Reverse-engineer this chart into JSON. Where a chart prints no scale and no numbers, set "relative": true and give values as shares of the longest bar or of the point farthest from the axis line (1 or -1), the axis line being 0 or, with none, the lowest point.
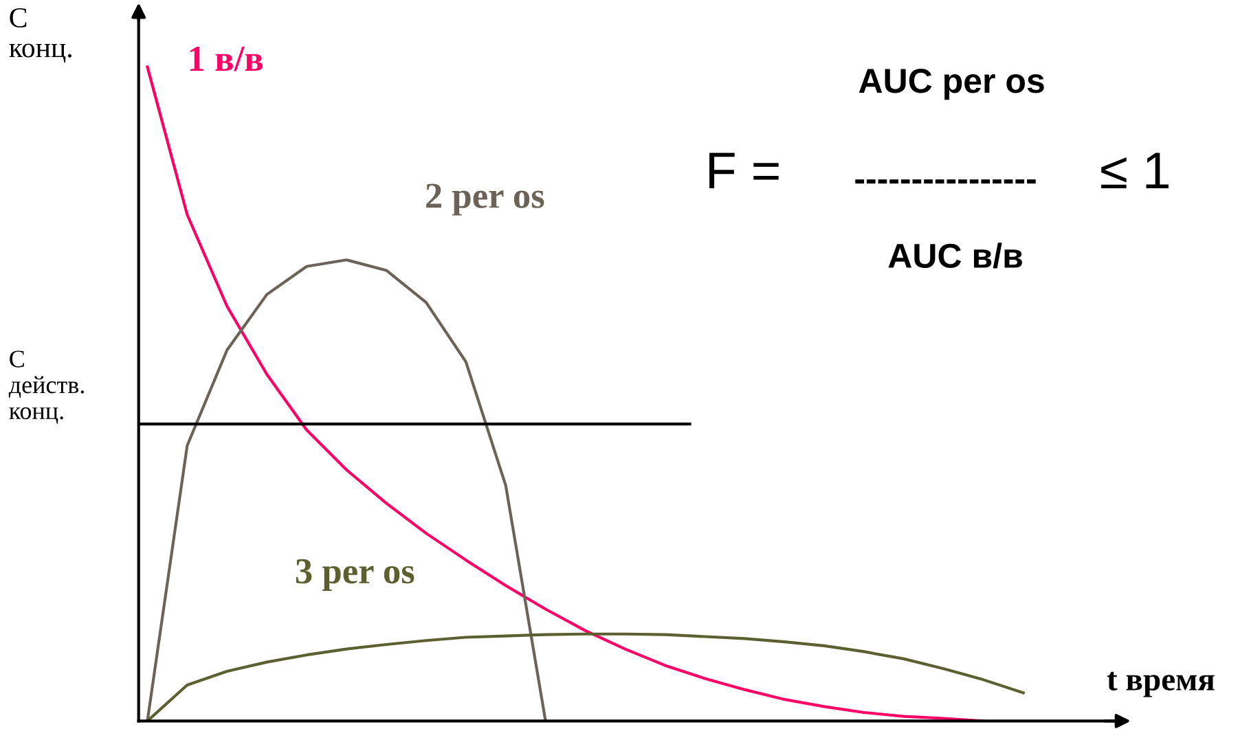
{
  "chart_data": {
    "type": "line",
    "relative": true,
    "ylabel": "С\nконц.",
    "xlabel": "t время",
    "categories": [
      null,
      null,
      null,
      null,
      null,
      null,
      null,
      null,
      null,
      null,
      null,
      null,
      null,
      null,
      null,
      null,
      null,
      null,
      null,
      null,
      null,
      null,
      null,
      null
    ],
    "series": [
      {
        "name": "1 в/в",
        "color": "#ff0066",
        "values": [
          1.0,
          0.774,
          0.634,
          0.53,
          0.445,
          0.384,
          0.333,
          0.287,
          0.246,
          0.207,
          0.171,
          0.138,
          0.11,
          0.085,
          0.065,
          0.048,
          0.033,
          0.022,
          0.013,
          0.007,
          0.004,
          0.0,
          null,
          null
        ]
      },
      {
        "name": "2 per os",
        "color": "#6b6358",
        "values": [
          0.0,
          0.421,
          0.567,
          0.652,
          0.695,
          0.705,
          0.689,
          0.64,
          0.549,
          0.36,
          0.0,
          null,
          null,
          null,
          null,
          null,
          null,
          null,
          null,
          null,
          null,
          null,
          null,
          null
        ]
      },
      {
        "name": "3 per os",
        "color": "#5c6030",
        "values": [
          0.0,
          0.055,
          0.076,
          0.09,
          0.101,
          0.11,
          0.117,
          0.123,
          0.128,
          0.13,
          0.132,
          0.133,
          0.133,
          0.132,
          0.129,
          0.126,
          0.121,
          0.115,
          0.106,
          0.095,
          0.08,
          0.063,
          0.043,
          null
        ]
      }
    ],
    "ref_lines": [
      {
        "axis": "y",
        "value": 0.454,
        "label": "С\nдейств.\nконц.",
        "color": "#000000"
      }
    ],
    "annotations": [
      "AUC per os",
      "F =",
      "----------------",
      "≤ 1",
      "AUC в/в"
    ],
    "grid": false,
    "legend": false,
    "marker": "none",
    "line_style": "solid"
  }
}
